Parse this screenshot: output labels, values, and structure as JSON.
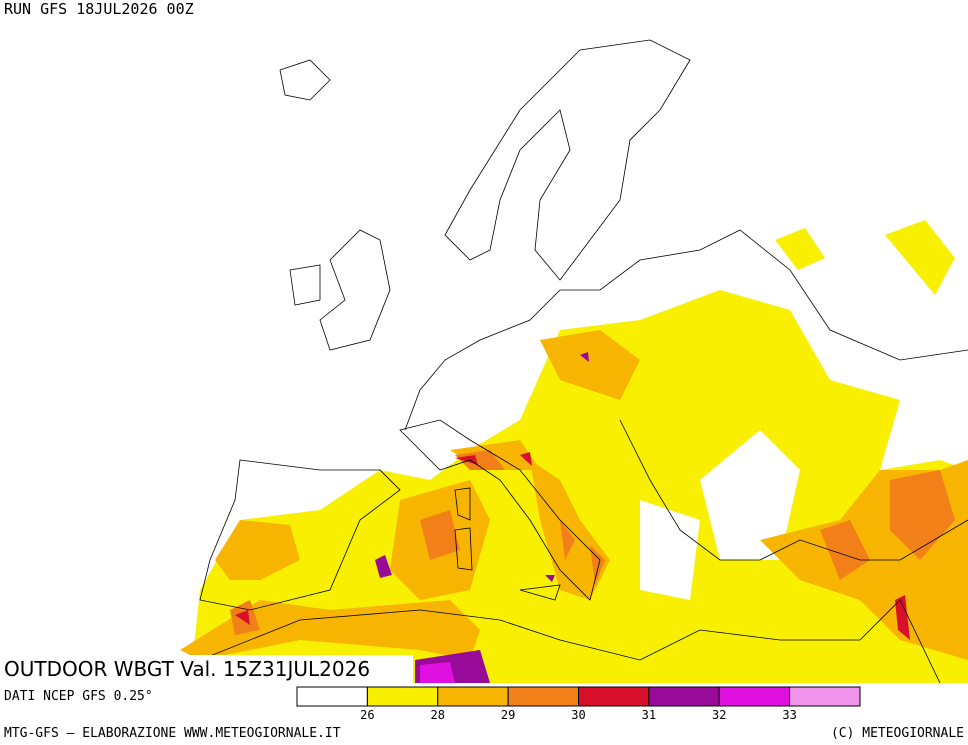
{
  "header": {
    "run": "RUN GFS 18JUL2026 00Z"
  },
  "map": {
    "title": "OUTDOOR WBGT Val. 15Z31JUL2026"
  },
  "source": "DATI NCEP GFS 0.25°",
  "legend": {
    "colors": [
      "#ffffff",
      "#f8f000",
      "#f7b400",
      "#f28018",
      "#d8102c",
      "#980a98",
      "#e010e0",
      "#f094ec"
    ],
    "thresholds": [
      26,
      28,
      29,
      30,
      31,
      32,
      33
    ]
  },
  "footer": {
    "left": "MTG-GFS – ELABORAZIONE WWW.METEOGIORNALE.IT",
    "right": "(C) METEOGIORNALE"
  }
}
